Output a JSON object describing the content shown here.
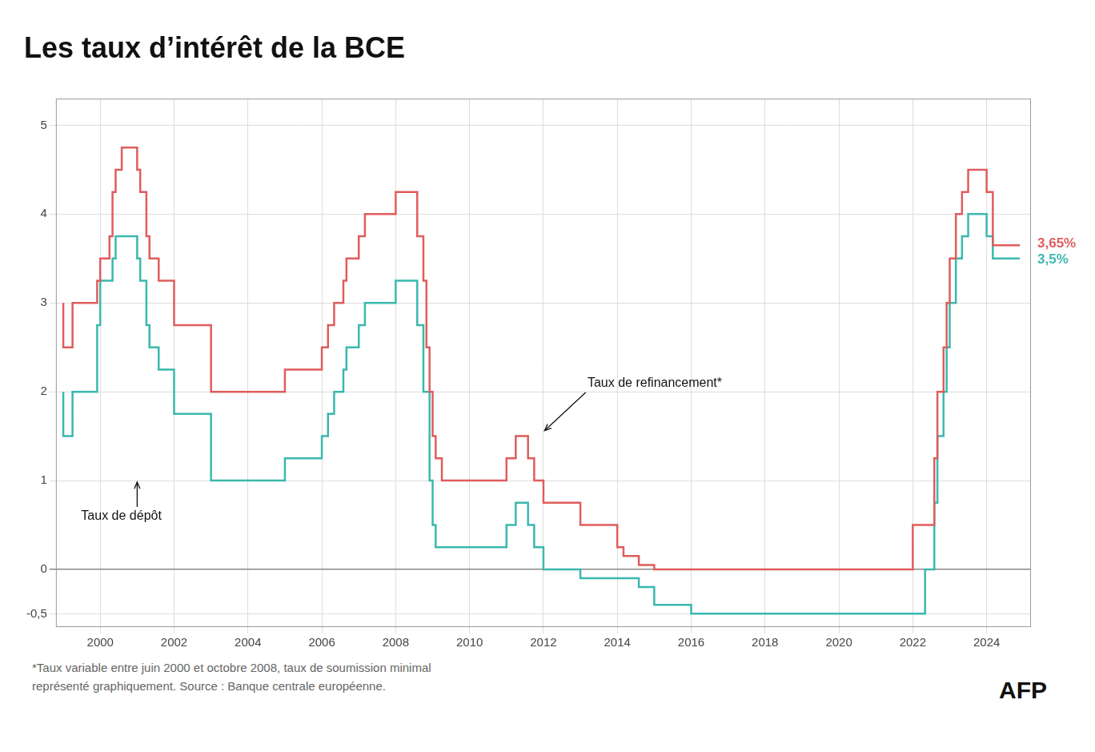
{
  "chart_data": {
    "type": "line",
    "title": "Les taux d’intérêt de la BCE",
    "grid": true,
    "xlim": [
      1998.8,
      2025.2
    ],
    "xticks": [
      2000,
      2002,
      2004,
      2006,
      2008,
      2010,
      2012,
      2014,
      2016,
      2018,
      2020,
      2022,
      2024
    ],
    "ylim": [
      -0.65,
      5.3
    ],
    "yticks": [
      {
        "value": -0.5,
        "label": "-0,5"
      },
      0,
      1,
      2,
      3,
      4,
      5
    ],
    "series": [
      {
        "color": "#e05c5c",
        "line_style": "steps",
        "x": [
          1999.0,
          1999.25,
          1999.917,
          2000.0,
          2000.25,
          2000.333,
          2000.417,
          2000.583,
          2000.75,
          2001.0,
          2001.083,
          2001.25,
          2001.333,
          2001.583,
          2001.75,
          2002.0,
          2002.917,
          2003.0,
          2003.5,
          2004.0,
          2005.0,
          2005.917,
          2006.0,
          2006.167,
          2006.333,
          2006.583,
          2006.667,
          2006.833,
          2007.0,
          2007.167,
          2007.583,
          2008.0,
          2008.583,
          2008.75,
          2008.833,
          2008.917,
          2009.0,
          2009.083,
          2009.25,
          2009.333,
          2010.0,
          2011.0,
          2011.25,
          2011.583,
          2011.75,
          2011.917,
          2012.0,
          2012.583,
          2013.0,
          2013.417,
          2014.0,
          2014.167,
          2014.583,
          2015.0,
          2016.0,
          2022.0,
          2022.583,
          2022.667,
          2022.833,
          2022.917,
          2023.0,
          2023.167,
          2023.333,
          2023.5,
          2023.583,
          2024.0,
          2024.167,
          2024.583,
          2024.9
        ],
        "values": [
          3.0,
          2.5,
          3.0,
          3.25,
          3.5,
          3.75,
          4.25,
          4.5,
          4.75,
          4.75,
          4.5,
          4.25,
          3.75,
          3.5,
          3.25,
          3.25,
          2.75,
          2.75,
          2.0,
          2.0,
          2.0,
          2.25,
          2.25,
          2.5,
          2.75,
          3.0,
          3.25,
          3.5,
          3.5,
          3.75,
          4.0,
          4.0,
          4.25,
          3.75,
          3.25,
          2.5,
          2.0,
          1.5,
          1.25,
          1.0,
          1.0,
          1.0,
          1.25,
          1.5,
          1.25,
          1.0,
          1.0,
          0.75,
          0.75,
          0.5,
          0.5,
          0.25,
          0.15,
          0.05,
          0.0,
          0.0,
          0.5,
          1.25,
          2.0,
          2.5,
          3.0,
          3.5,
          4.0,
          4.25,
          4.5,
          4.5,
          4.25,
          3.65,
          3.65
        ],
        "value_labels": [
          null,
          null,
          null,
          null,
          null,
          null,
          null,
          null,
          null,
          null,
          null,
          null,
          null,
          null,
          null,
          null,
          null,
          null,
          null,
          null,
          null,
          null,
          null,
          null,
          null,
          null,
          null,
          null,
          null,
          null,
          null,
          null,
          null,
          null,
          null,
          null,
          null,
          null,
          null,
          null,
          null,
          null,
          null,
          null,
          null,
          null,
          null,
          null,
          null,
          null,
          null,
          null,
          null,
          null,
          null,
          null,
          null,
          null,
          null,
          null,
          null,
          null,
          null,
          null,
          null,
          null,
          null,
          null,
          "3,65%"
        ]
      },
      {
        "color": "#3ab8ad",
        "line_style": "steps",
        "x": [
          1999.0,
          1999.25,
          1999.917,
          2000.0,
          2000.333,
          2000.417,
          2000.583,
          2000.75,
          2001.0,
          2001.083,
          2001.25,
          2001.333,
          2001.583,
          2001.75,
          2002.0,
          2002.917,
          2003.0,
          2003.5,
          2004.0,
          2005.0,
          2005.917,
          2006.0,
          2006.167,
          2006.333,
          2006.583,
          2006.667,
          2006.833,
          2007.0,
          2007.167,
          2007.583,
          2008.0,
          2008.583,
          2008.75,
          2008.917,
          2009.0,
          2009.083,
          2009.25,
          2010.0,
          2011.0,
          2011.25,
          2011.583,
          2011.75,
          2011.917,
          2012.0,
          2012.583,
          2013.0,
          2014.583,
          2015.0,
          2016.0,
          2019.0,
          2022.333,
          2022.583,
          2022.667,
          2022.833,
          2022.917,
          2023.0,
          2023.167,
          2023.333,
          2023.5,
          2023.583,
          2024.0,
          2024.167,
          2024.583,
          2024.9
        ],
        "values": [
          2.0,
          1.5,
          2.0,
          2.75,
          3.25,
          3.5,
          3.75,
          3.75,
          3.75,
          3.5,
          3.25,
          2.75,
          2.5,
          2.25,
          2.25,
          1.75,
          1.75,
          1.0,
          1.0,
          1.0,
          1.25,
          1.25,
          1.5,
          1.75,
          2.0,
          2.25,
          2.5,
          2.5,
          2.75,
          3.0,
          3.0,
          3.25,
          2.75,
          2.0,
          1.0,
          0.5,
          0.25,
          0.25,
          0.25,
          0.5,
          0.75,
          0.5,
          0.25,
          0.25,
          0.0,
          0.0,
          -0.1,
          -0.2,
          -0.4,
          -0.5,
          -0.5,
          0.0,
          0.75,
          1.5,
          2.0,
          2.5,
          3.0,
          3.5,
          3.75,
          4.0,
          4.0,
          3.75,
          3.5,
          3.5
        ],
        "value_labels": [
          null,
          null,
          null,
          null,
          null,
          null,
          null,
          null,
          null,
          null,
          null,
          null,
          null,
          null,
          null,
          null,
          null,
          null,
          null,
          null,
          null,
          null,
          null,
          null,
          null,
          null,
          null,
          null,
          null,
          null,
          null,
          null,
          null,
          null,
          null,
          null,
          null,
          null,
          null,
          null,
          null,
          null,
          null,
          null,
          null,
          null,
          null,
          null,
          null,
          null,
          null,
          null,
          null,
          null,
          null,
          null,
          null,
          null,
          null,
          null,
          null,
          null,
          null,
          "3,5%"
        ]
      }
    ],
    "annotations": [
      {
        "text": "Taux de dépôt",
        "x": 2001.0,
        "y": 1.0
      },
      {
        "text": "Taux de refinancement*",
        "x": 2012.0,
        "y": 1.55
      }
    ],
    "footnote": [
      "*Taux variable entre juin 2000 et octobre 2008, taux de soumission minimal",
      "représenté graphiquement. Source : Banque centrale européenne."
    ],
    "credit": "AFP"
  }
}
